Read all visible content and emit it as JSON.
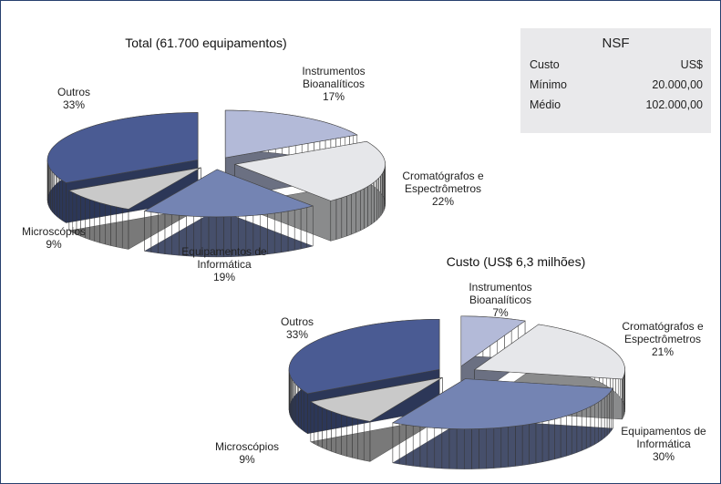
{
  "chart_data": [
    {
      "type": "pie",
      "title": "Total (61.700 equipamentos)",
      "categories": [
        "Instrumentos Bioanalíticos",
        "Cromatógrafos e Espectrômetros",
        "Equipamentos de Informática",
        "Microscópios",
        "Outros"
      ],
      "values": [
        17,
        22,
        19,
        9,
        33
      ],
      "value_labels": [
        "17%",
        "22%",
        "19%",
        "9%",
        "33%"
      ],
      "colors": [
        "#b3bad8",
        "#e6e7ea",
        "#7484b3",
        "#c9c9c9",
        "#4a5b93"
      ]
    },
    {
      "type": "pie",
      "title": "Custo (US$ 6,3 milhões)",
      "categories": [
        "Instrumentos Bioanalíticos",
        "Cromatógrafos e Espectrômetros",
        "Equipamentos de Informática",
        "Microscópios",
        "Outros"
      ],
      "values": [
        7,
        21,
        30,
        9,
        33
      ],
      "value_labels": [
        "7%",
        "21%",
        "30%",
        "9%",
        "33%"
      ],
      "colors": [
        "#b3bad8",
        "#e6e7ea",
        "#7484b3",
        "#c9c9c9",
        "#4a5b93"
      ]
    }
  ],
  "table": {
    "title": "NSF",
    "header": [
      "Custo",
      "US$"
    ],
    "rows": [
      [
        "Mínimo",
        "20.000,00"
      ],
      [
        "Médio",
        "102.000,00"
      ]
    ]
  }
}
